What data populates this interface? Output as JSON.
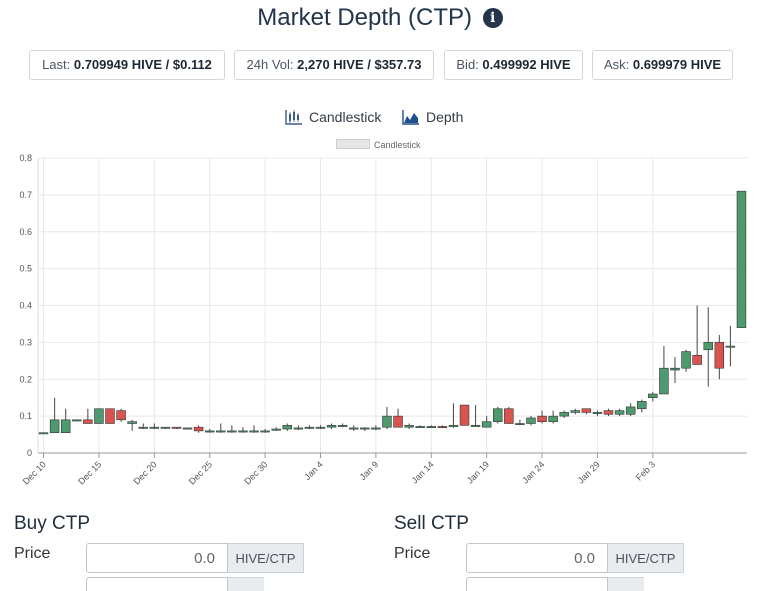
{
  "header": {
    "title": "Market Depth (CTP)",
    "info_icon": "info-circle-icon"
  },
  "stats": [
    {
      "label": "Last: ",
      "value": "0.709949 HIVE / $0.112"
    },
    {
      "label": "24h Vol: ",
      "value": "2,270 HIVE / $357.73"
    },
    {
      "label": "Bid: ",
      "value": "0.499992 HIVE"
    },
    {
      "label": "Ask: ",
      "value": "0.699979 HIVE"
    }
  ],
  "chart_tabs": [
    {
      "label": "Candlestick",
      "icon": "candlestick-chart-icon"
    },
    {
      "label": "Depth",
      "icon": "area-chart-icon"
    }
  ],
  "chart_data": {
    "type": "candlestick",
    "legend": [
      "Candlestick"
    ],
    "ylim": [
      0,
      0.8
    ],
    "y_ticks": [
      "0",
      "0.1",
      "0.2",
      "0.3",
      "0.4",
      "0.5",
      "0.6",
      "0.7",
      "0.8"
    ],
    "x_tick_labels": [
      "Dec 10",
      "Dec 15",
      "Dec 20",
      "Dec 25",
      "Dec 30",
      "Jan 4",
      "Jan 9",
      "Jan 14",
      "Jan 19",
      "Jan 24",
      "Jan 29",
      "Feb 3"
    ],
    "grid": true,
    "colors": {
      "up": "#4e9a6e",
      "down": "#d9534f",
      "grid": "#e8e8e8"
    },
    "candles": [
      {
        "o": 0.055,
        "h": 0.055,
        "l": 0.053,
        "c": 0.055
      },
      {
        "o": 0.055,
        "h": 0.15,
        "l": 0.055,
        "c": 0.09
      },
      {
        "o": 0.055,
        "h": 0.12,
        "l": 0.055,
        "c": 0.09
      },
      {
        "o": 0.09,
        "h": 0.09,
        "l": 0.085,
        "c": 0.09
      },
      {
        "o": 0.09,
        "h": 0.12,
        "l": 0.08,
        "c": 0.08
      },
      {
        "o": 0.08,
        "h": 0.12,
        "l": 0.08,
        "c": 0.12
      },
      {
        "o": 0.12,
        "h": 0.12,
        "l": 0.08,
        "c": 0.08
      },
      {
        "o": 0.115,
        "h": 0.12,
        "l": 0.085,
        "c": 0.09
      },
      {
        "o": 0.08,
        "h": 0.09,
        "l": 0.06,
        "c": 0.085
      },
      {
        "o": 0.07,
        "h": 0.08,
        "l": 0.065,
        "c": 0.07
      },
      {
        "o": 0.07,
        "h": 0.08,
        "l": 0.065,
        "c": 0.07
      },
      {
        "o": 0.07,
        "h": 0.07,
        "l": 0.065,
        "c": 0.07
      },
      {
        "o": 0.07,
        "h": 0.07,
        "l": 0.065,
        "c": 0.068
      },
      {
        "o": 0.068,
        "h": 0.068,
        "l": 0.065,
        "c": 0.068
      },
      {
        "o": 0.07,
        "h": 0.075,
        "l": 0.055,
        "c": 0.06
      },
      {
        "o": 0.06,
        "h": 0.065,
        "l": 0.055,
        "c": 0.06
      },
      {
        "o": 0.06,
        "h": 0.08,
        "l": 0.055,
        "c": 0.06
      },
      {
        "o": 0.06,
        "h": 0.075,
        "l": 0.055,
        "c": 0.06
      },
      {
        "o": 0.06,
        "h": 0.07,
        "l": 0.055,
        "c": 0.06
      },
      {
        "o": 0.06,
        "h": 0.075,
        "l": 0.055,
        "c": 0.06
      },
      {
        "o": 0.06,
        "h": 0.065,
        "l": 0.055,
        "c": 0.06
      },
      {
        "o": 0.065,
        "h": 0.07,
        "l": 0.06,
        "c": 0.065
      },
      {
        "o": 0.065,
        "h": 0.08,
        "l": 0.06,
        "c": 0.075
      },
      {
        "o": 0.068,
        "h": 0.075,
        "l": 0.062,
        "c": 0.068
      },
      {
        "o": 0.068,
        "h": 0.075,
        "l": 0.065,
        "c": 0.07
      },
      {
        "o": 0.07,
        "h": 0.075,
        "l": 0.065,
        "c": 0.07
      },
      {
        "o": 0.07,
        "h": 0.08,
        "l": 0.065,
        "c": 0.075
      },
      {
        "o": 0.075,
        "h": 0.08,
        "l": 0.07,
        "c": 0.075
      },
      {
        "o": 0.065,
        "h": 0.075,
        "l": 0.06,
        "c": 0.068
      },
      {
        "o": 0.065,
        "h": 0.07,
        "l": 0.06,
        "c": 0.068
      },
      {
        "o": 0.068,
        "h": 0.075,
        "l": 0.062,
        "c": 0.068
      },
      {
        "o": 0.07,
        "h": 0.125,
        "l": 0.065,
        "c": 0.1
      },
      {
        "o": 0.1,
        "h": 0.12,
        "l": 0.07,
        "c": 0.07
      },
      {
        "o": 0.07,
        "h": 0.08,
        "l": 0.065,
        "c": 0.075
      },
      {
        "o": 0.072,
        "h": 0.075,
        "l": 0.07,
        "c": 0.072
      },
      {
        "o": 0.072,
        "h": 0.075,
        "l": 0.068,
        "c": 0.072
      },
      {
        "o": 0.072,
        "h": 0.075,
        "l": 0.068,
        "c": 0.07
      },
      {
        "o": 0.072,
        "h": 0.135,
        "l": 0.068,
        "c": 0.075
      },
      {
        "o": 0.13,
        "h": 0.13,
        "l": 0.075,
        "c": 0.075
      },
      {
        "o": 0.075,
        "h": 0.13,
        "l": 0.072,
        "c": 0.075
      },
      {
        "o": 0.07,
        "h": 0.1,
        "l": 0.07,
        "c": 0.085
      },
      {
        "o": 0.085,
        "h": 0.125,
        "l": 0.08,
        "c": 0.12
      },
      {
        "o": 0.12,
        "h": 0.125,
        "l": 0.08,
        "c": 0.08
      },
      {
        "o": 0.08,
        "h": 0.09,
        "l": 0.075,
        "c": 0.08
      },
      {
        "o": 0.08,
        "h": 0.1,
        "l": 0.075,
        "c": 0.095
      },
      {
        "o": 0.1,
        "h": 0.115,
        "l": 0.08,
        "c": 0.085
      },
      {
        "o": 0.085,
        "h": 0.115,
        "l": 0.08,
        "c": 0.1
      },
      {
        "o": 0.1,
        "h": 0.115,
        "l": 0.095,
        "c": 0.11
      },
      {
        "o": 0.11,
        "h": 0.12,
        "l": 0.105,
        "c": 0.115
      },
      {
        "o": 0.12,
        "h": 0.12,
        "l": 0.105,
        "c": 0.11
      },
      {
        "o": 0.11,
        "h": 0.115,
        "l": 0.1,
        "c": 0.11
      },
      {
        "o": 0.115,
        "h": 0.12,
        "l": 0.1,
        "c": 0.105
      },
      {
        "o": 0.105,
        "h": 0.12,
        "l": 0.1,
        "c": 0.115
      },
      {
        "o": 0.105,
        "h": 0.135,
        "l": 0.1,
        "c": 0.125
      },
      {
        "o": 0.12,
        "h": 0.145,
        "l": 0.11,
        "c": 0.14
      },
      {
        "o": 0.15,
        "h": 0.165,
        "l": 0.14,
        "c": 0.16
      },
      {
        "o": 0.16,
        "h": 0.29,
        "l": 0.16,
        "c": 0.23
      },
      {
        "o": 0.225,
        "h": 0.26,
        "l": 0.19,
        "c": 0.23
      },
      {
        "o": 0.23,
        "h": 0.28,
        "l": 0.22,
        "c": 0.275
      },
      {
        "o": 0.265,
        "h": 0.4,
        "l": 0.24,
        "c": 0.24
      },
      {
        "o": 0.28,
        "h": 0.395,
        "l": 0.18,
        "c": 0.3
      },
      {
        "o": 0.3,
        "h": 0.32,
        "l": 0.2,
        "c": 0.23
      },
      {
        "o": 0.29,
        "h": 0.345,
        "l": 0.235,
        "c": 0.29
      },
      {
        "o": 0.34,
        "h": 0.71,
        "l": 0.34,
        "c": 0.71
      }
    ]
  },
  "buy": {
    "title": "Buy CTP",
    "price_label": "Price",
    "price_value": "0.0",
    "unit": "HIVE/CTP"
  },
  "sell": {
    "title": "Sell CTP",
    "price_label": "Price",
    "price_value": "0.0",
    "unit": "HIVE/CTP"
  }
}
